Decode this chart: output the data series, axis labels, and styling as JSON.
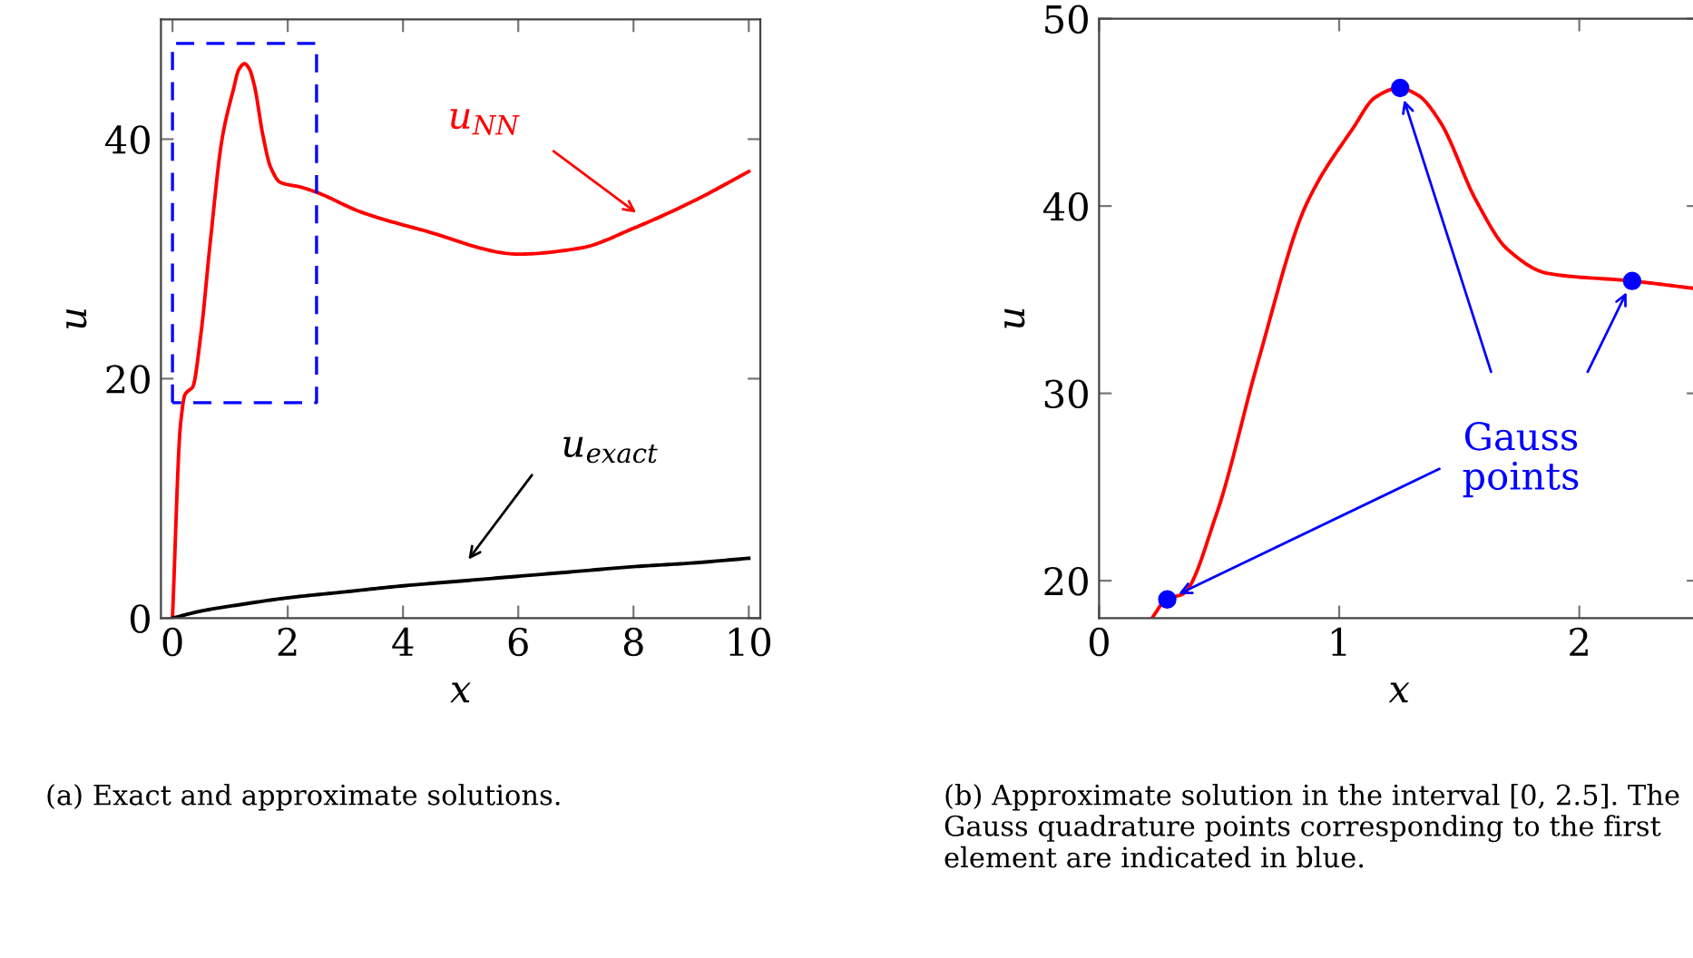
{
  "chart_data": [
    {
      "type": "line",
      "xlabel": "x",
      "ylabel": "u",
      "xlim": [
        -0.2,
        10.2
      ],
      "ylim": [
        0,
        50
      ],
      "xticks": [
        0,
        2,
        4,
        6,
        8,
        10
      ],
      "yticks": [
        0,
        20,
        40
      ],
      "grid": false,
      "legend": false,
      "series": [
        {
          "color": "#ff0000",
          "x": [
            0,
            0.14,
            0.22,
            0.28,
            0.35,
            0.49,
            0.66,
            0.86,
            1.06,
            1.15,
            1.25,
            1.33,
            1.42,
            1.57,
            1.7,
            1.87,
            2.22,
            2.48,
            3.28,
            4.34,
            6.02,
            7.07,
            8.02,
            9.07,
            10
          ],
          "values": [
            0,
            16.2,
            18.7,
            19.0,
            19.3,
            23.6,
            31.6,
            40.0,
            44.2,
            45.8,
            46.3,
            45.9,
            44.5,
            40.3,
            37.7,
            36.4,
            36.0,
            35.6,
            33.9,
            32.4,
            30.4,
            30.9,
            32.6,
            34.9,
            37.3
          ]
        },
        {
          "color": "#000000",
          "x": [
            0,
            0.5,
            1,
            2,
            3,
            4,
            5,
            6,
            7,
            8,
            9,
            10
          ],
          "values": [
            0,
            0.6,
            1.0,
            1.7,
            2.2,
            2.7,
            3.1,
            3.5,
            3.9,
            4.3,
            4.6,
            5.0
          ]
        }
      ],
      "annotations": [
        "u$_{NN}$",
        "u$_{exact}$",
        "(a) Exact and approximate solutions."
      ]
    },
    {
      "type": "line",
      "xlabel": "x",
      "ylabel": "u",
      "xlim": [
        0,
        2.5
      ],
      "ylim": [
        18,
        50
      ],
      "xticks": [
        0,
        1,
        2
      ],
      "yticks": [
        20,
        30,
        40,
        50
      ],
      "grid": false,
      "legend": false,
      "series": [
        {
          "color": "#ff0000",
          "x": [
            0.22,
            0.28,
            0.35,
            0.49,
            0.66,
            0.86,
            1.06,
            1.15,
            1.25,
            1.33,
            1.42,
            1.57,
            1.7,
            1.87,
            2.22,
            2.48
          ],
          "values": [
            18,
            19.0,
            19.3,
            23.6,
            31.6,
            40.0,
            44.2,
            45.8,
            46.3,
            45.9,
            44.5,
            40.3,
            37.7,
            36.4,
            36.0,
            35.6
          ]
        },
        {
          "type": "scatter",
          "name": "Gauss\npoints",
          "color": "#0000ff",
          "marker": "circle",
          "x": [
            0.284,
            1.254,
            2.22
          ],
          "values": [
            19.0,
            46.3,
            36.0
          ]
        }
      ],
      "annotations": [
        "(b) Approximate solution in the interval [0, 2.5]. The Gauss quadrature points corresponding to the first element are indicated in blue."
      ]
    }
  ]
}
